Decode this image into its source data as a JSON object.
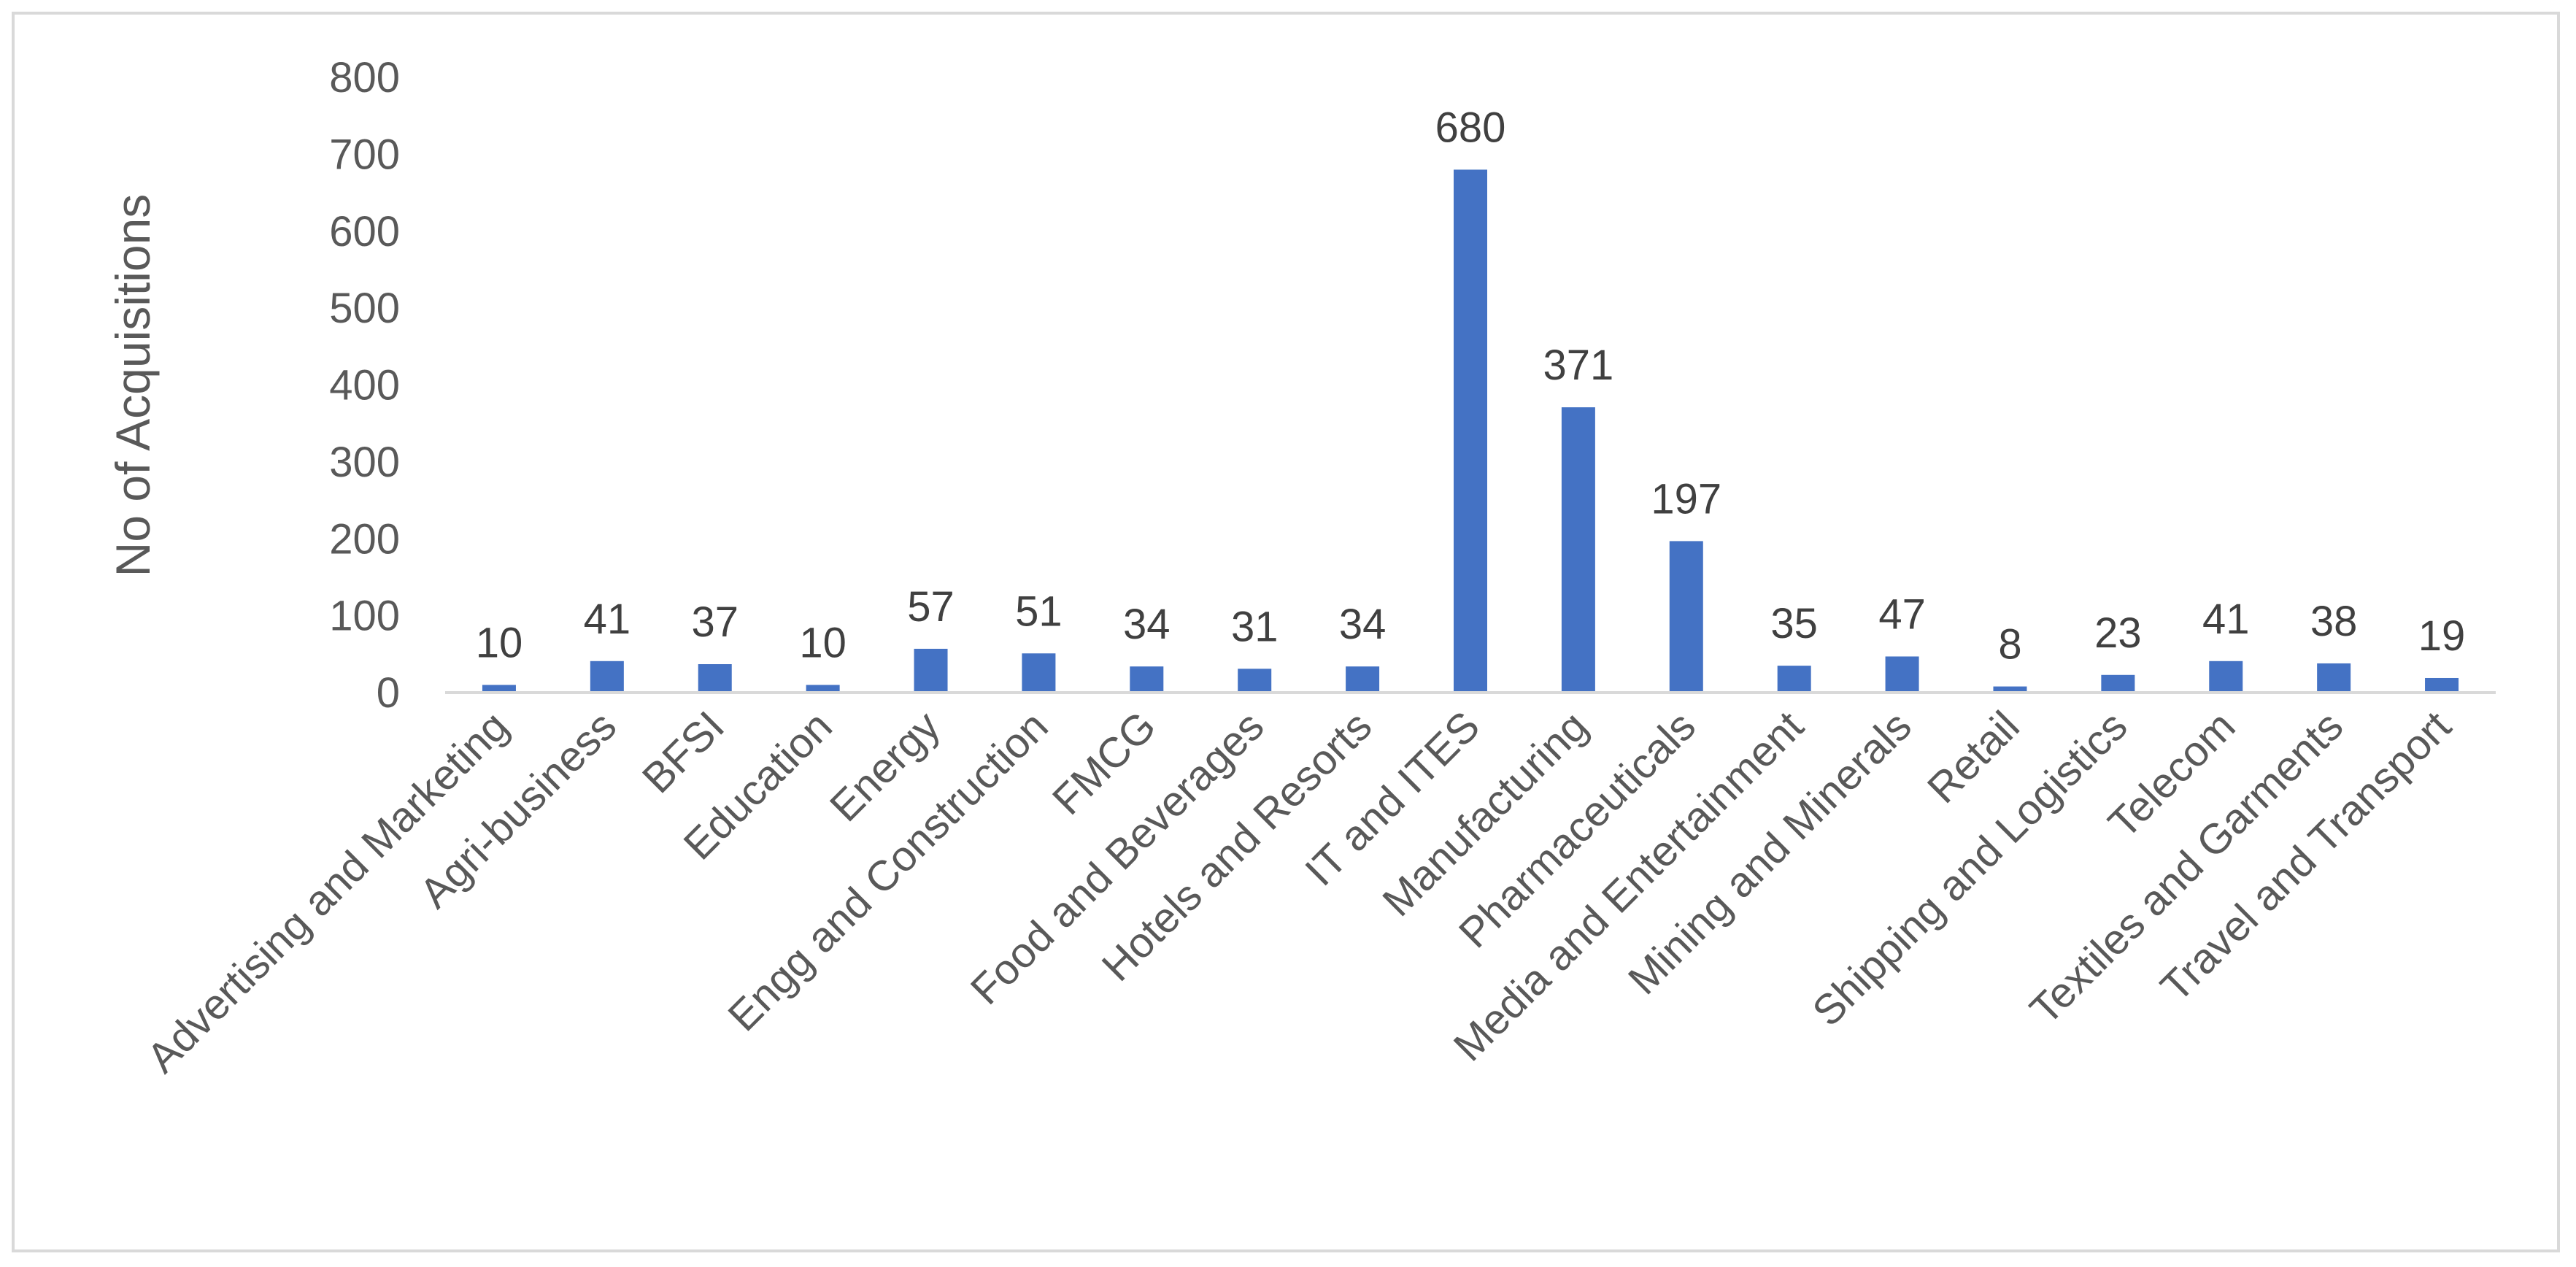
{
  "chart_data": {
    "type": "bar",
    "title": "",
    "xlabel": "",
    "ylabel": "No of Acquisitions",
    "ylim": [
      0,
      800
    ],
    "yticks": [
      0,
      100,
      200,
      300,
      400,
      500,
      600,
      700,
      800
    ],
    "grid": false,
    "legend": "none",
    "categories": [
      "Advertising  and  Marketing",
      "Agri-business",
      "BFSI",
      "Education",
      "Energy",
      "Engg and Construction",
      "FMCG",
      "Food and  Beverages",
      "Hotels and Resorts",
      "IT and ITES",
      "Manufacturing",
      "Pharmaceuticals",
      "Media and Entertainment",
      "Mining and Minerals",
      "Retail",
      "Shipping and Logistics",
      "Telecom",
      "Textiles and Garments",
      "Travel and Transport"
    ],
    "values": [
      10,
      41,
      37,
      10,
      57,
      51,
      34,
      31,
      34,
      680,
      371,
      197,
      35,
      47,
      8,
      23,
      41,
      38,
      19
    ],
    "colors": {
      "bar": "#4472c4",
      "axis": "#d9d9d9",
      "text": "#595959"
    }
  }
}
